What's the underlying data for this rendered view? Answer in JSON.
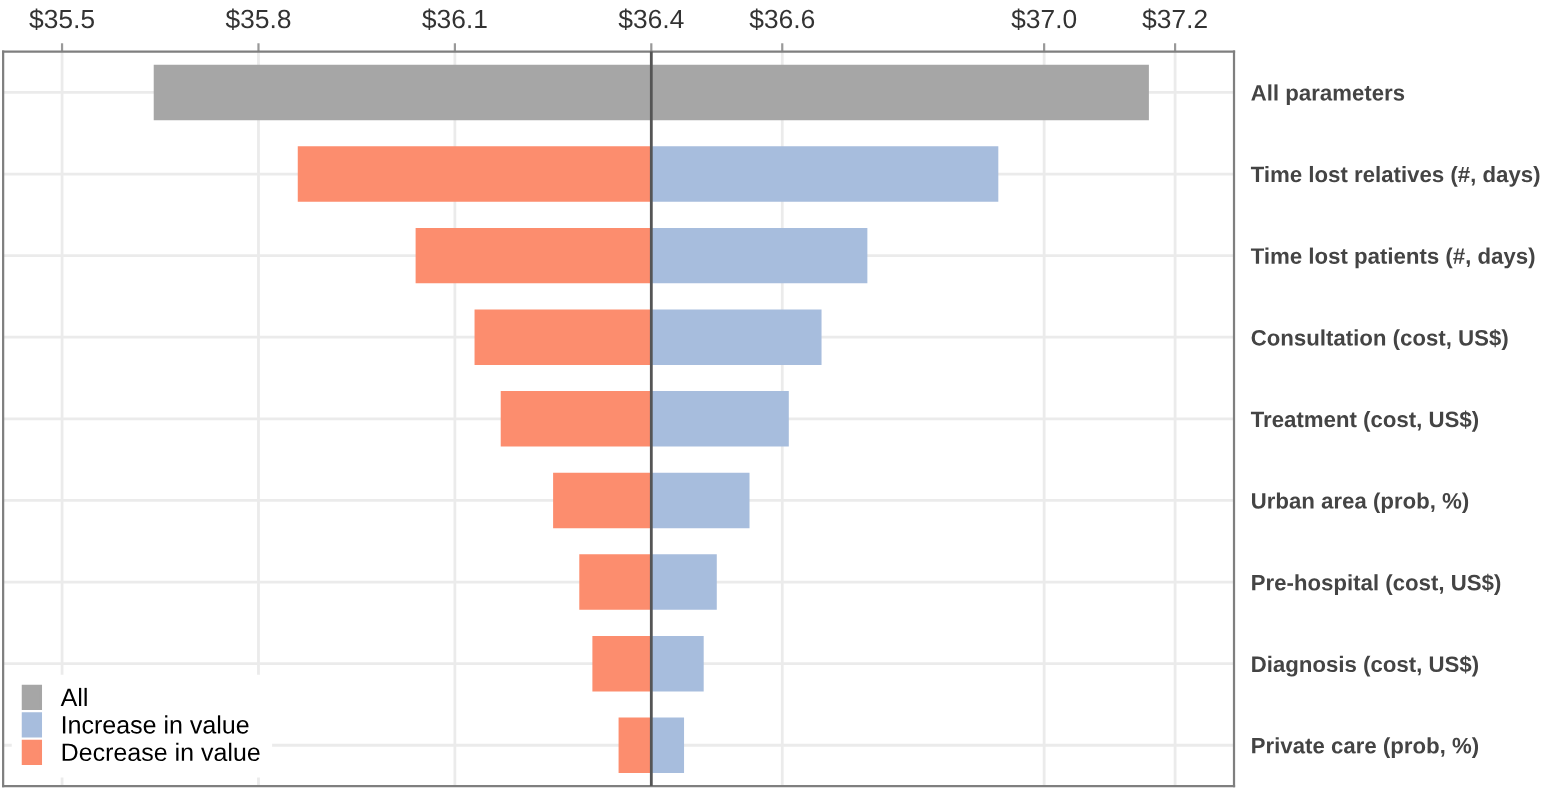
{
  "chart_data": {
    "type": "bar",
    "orientation": "horizontal",
    "categories": [
      "All parameters",
      "Time lost relatives (#, days)",
      "Time lost patients (#, days)",
      "Consultation (cost, US$)",
      "Treatment (cost, US$)",
      "Urban area (prob, %)",
      "Pre-hospital (cost, US$)",
      "Diagnosis (cost, US$)",
      "Private care (prob, %)"
    ],
    "series": [
      {
        "name": "All",
        "color": "#a6a6a6",
        "base": [
          35.64,
          null,
          null,
          null,
          null,
          null,
          null,
          null,
          null
        ],
        "values": [
          1.52,
          null,
          null,
          null,
          null,
          null,
          null,
          null,
          null
        ]
      },
      {
        "name": "Increase in value",
        "color": "#a7bddd",
        "base": [
          null,
          36.4,
          36.4,
          36.4,
          36.4,
          36.4,
          36.4,
          36.4,
          36.4
        ],
        "values": [
          null,
          0.53,
          0.33,
          0.26,
          0.21,
          0.15,
          0.1,
          0.08,
          0.05
        ]
      },
      {
        "name": "Decrease in value",
        "color": "#fc8d6e",
        "base": [
          null,
          35.86,
          36.04,
          36.13,
          36.17,
          36.25,
          36.29,
          36.31,
          36.35
        ],
        "values": [
          null,
          0.54,
          0.36,
          0.27,
          0.23,
          0.15,
          0.11,
          0.09,
          0.05
        ]
      }
    ],
    "xlim": [
      35.41,
      37.29
    ],
    "xticks": [
      {
        "value": 35.5,
        "label": "$35.5"
      },
      {
        "value": 35.8,
        "label": "$35.8"
      },
      {
        "value": 36.1,
        "label": "$36.1"
      },
      {
        "value": 36.4,
        "label": "$36.4"
      },
      {
        "value": 36.6,
        "label": "$36.6"
      },
      {
        "value": 37.0,
        "label": "$37.0"
      },
      {
        "value": 37.2,
        "label": "$37.2"
      }
    ],
    "ref_lines": [
      {
        "axis": "x",
        "value": 36.4,
        "label": null,
        "color": "#555555"
      }
    ],
    "grid": true,
    "legend": "bottom left"
  }
}
